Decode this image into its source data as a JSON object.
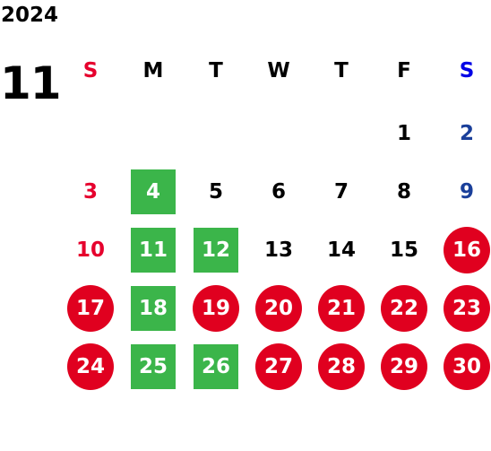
{
  "year": "2024",
  "month": "11",
  "weekdays": [
    "S",
    "M",
    "T",
    "W",
    "T",
    "F",
    "S"
  ],
  "weeks": [
    [
      {
        "d": "",
        "k": "blank"
      },
      {
        "d": "",
        "k": "blank"
      },
      {
        "d": "",
        "k": "blank"
      },
      {
        "d": "",
        "k": "blank"
      },
      {
        "d": "",
        "k": "blank"
      },
      {
        "d": "1",
        "k": "normal"
      },
      {
        "d": "2",
        "k": "sat"
      }
    ],
    [
      {
        "d": "3",
        "k": "sun"
      },
      {
        "d": "4",
        "k": "green"
      },
      {
        "d": "5",
        "k": "normal"
      },
      {
        "d": "6",
        "k": "normal"
      },
      {
        "d": "7",
        "k": "normal"
      },
      {
        "d": "8",
        "k": "normal"
      },
      {
        "d": "9",
        "k": "sat"
      }
    ],
    [
      {
        "d": "10",
        "k": "sun"
      },
      {
        "d": "11",
        "k": "green"
      },
      {
        "d": "12",
        "k": "green"
      },
      {
        "d": "13",
        "k": "normal"
      },
      {
        "d": "14",
        "k": "normal"
      },
      {
        "d": "15",
        "k": "normal"
      },
      {
        "d": "16",
        "k": "red"
      }
    ],
    [
      {
        "d": "17",
        "k": "red"
      },
      {
        "d": "18",
        "k": "green"
      },
      {
        "d": "19",
        "k": "red"
      },
      {
        "d": "20",
        "k": "red"
      },
      {
        "d": "21",
        "k": "red"
      },
      {
        "d": "22",
        "k": "red"
      },
      {
        "d": "23",
        "k": "red"
      }
    ],
    [
      {
        "d": "24",
        "k": "red"
      },
      {
        "d": "25",
        "k": "green"
      },
      {
        "d": "26",
        "k": "green"
      },
      {
        "d": "27",
        "k": "red"
      },
      {
        "d": "28",
        "k": "red"
      },
      {
        "d": "29",
        "k": "red"
      },
      {
        "d": "30",
        "k": "red"
      }
    ]
  ],
  "colors": {
    "sunday": "#e6002d",
    "saturday": "#1a3f9a",
    "green_mark": "#3bb54a",
    "red_mark": "#e0001f"
  }
}
